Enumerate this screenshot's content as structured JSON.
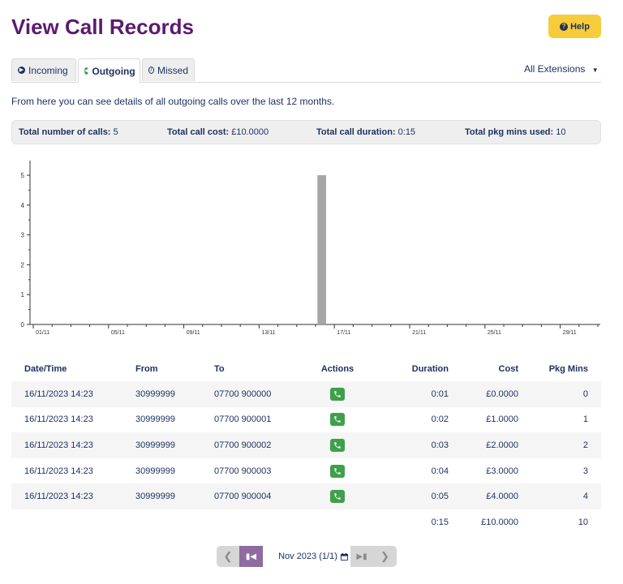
{
  "page": {
    "title": "View Call Records",
    "help_label": "Help",
    "description": "From here you can see details of all outgoing calls over the last 12 months."
  },
  "tabs": [
    {
      "label": "Incoming",
      "icon": "arrow-circle-right-icon",
      "active": false
    },
    {
      "label": "Outgoing",
      "icon": "arrow-circle-left-icon",
      "active": true
    },
    {
      "label": "Missed",
      "icon": "ban-icon",
      "active": false
    }
  ],
  "extension_filter": {
    "selected": "All Extensions"
  },
  "summary": {
    "total_calls_label": "Total number of calls:",
    "total_calls": "5",
    "total_cost_label": "Total call cost:",
    "total_cost": "£10.0000",
    "total_duration_label": "Total call duration:",
    "total_duration": "0:15",
    "total_pkg_label": "Total pkg mins used:",
    "total_pkg": "10"
  },
  "chart_data": {
    "type": "bar",
    "x_ticks": [
      "01/11",
      "05/11",
      "09/11",
      "13/11",
      "17/11",
      "21/11",
      "25/11",
      "29/11"
    ],
    "x_range": [
      1,
      30
    ],
    "ylim": [
      0,
      5
    ],
    "y_ticks": [
      0,
      1,
      2,
      3,
      4,
      5
    ],
    "bars": [
      {
        "day": 16,
        "value": 5
      }
    ],
    "bar_color": "#a6a6a6"
  },
  "table": {
    "headers": [
      "Date/Time",
      "From",
      "To",
      "Actions",
      "Duration",
      "Cost",
      "Pkg Mins"
    ],
    "rows": [
      {
        "datetime": "16/11/2023 14:23",
        "from": "30999999",
        "to": "07700 900000",
        "duration": "0:01",
        "cost": "£0.0000",
        "pkg": "0"
      },
      {
        "datetime": "16/11/2023 14:23",
        "from": "30999999",
        "to": "07700 900001",
        "duration": "0:02",
        "cost": "£1.0000",
        "pkg": "1"
      },
      {
        "datetime": "16/11/2023 14:23",
        "from": "30999999",
        "to": "07700 900002",
        "duration": "0:03",
        "cost": "£2.0000",
        "pkg": "2"
      },
      {
        "datetime": "16/11/2023 14:23",
        "from": "30999999",
        "to": "07700 900003",
        "duration": "0:04",
        "cost": "£3.0000",
        "pkg": "3"
      },
      {
        "datetime": "16/11/2023 14:23",
        "from": "30999999",
        "to": "07700 900004",
        "duration": "0:05",
        "cost": "£4.0000",
        "pkg": "4"
      }
    ],
    "totals": {
      "duration": "0:15",
      "cost": "£10.0000",
      "pkg": "10"
    }
  },
  "pagination": {
    "label": "Nov 2023 (1/1)"
  },
  "colors": {
    "title": "#5b1a6e",
    "help": "#f6cc3a",
    "call_button": "#3ea04a",
    "pager_active": "#8e6ba0"
  }
}
